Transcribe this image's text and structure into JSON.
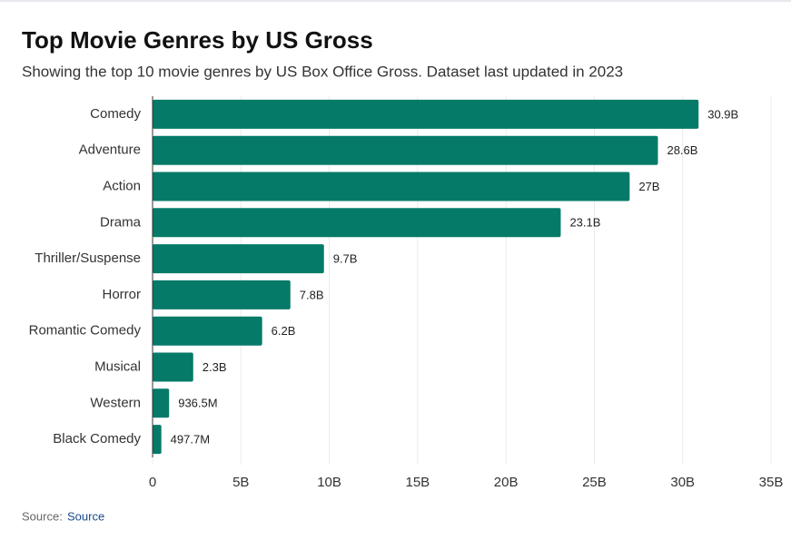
{
  "chart_data": {
    "type": "hbar",
    "title": "Top Movie Genres by US Gross",
    "subtitle": "Showing the top 10 movie genres by US Box Office Gross. Dataset last updated in 2023",
    "categories": [
      "Comedy",
      "Adventure",
      "Action",
      "Drama",
      "Thriller/Suspense",
      "Horror",
      "Romantic Comedy",
      "Musical",
      "Western",
      "Black Comedy"
    ],
    "values": [
      30900000000,
      28600000000,
      27000000000,
      23100000000,
      9700000000,
      7800000000,
      6200000000,
      2300000000,
      936500000,
      497700000
    ],
    "value_labels": [
      "30.9B",
      "28.6B",
      "27B",
      "23.1B",
      "9.7B",
      "7.8B",
      "6.2B",
      "2.3B",
      "936.5M",
      "497.7M"
    ],
    "color": "#057a68",
    "xlim": [
      0,
      35000000000
    ],
    "xticks": [
      0,
      {
        "value": 5000000000,
        "label": "5B"
      },
      {
        "value": 10000000000,
        "label": "10B"
      },
      {
        "value": 15000000000,
        "label": "15B"
      },
      {
        "value": 20000000000,
        "label": "20B"
      },
      {
        "value": 25000000000,
        "label": "25B"
      },
      {
        "value": 30000000000,
        "label": "30B"
      },
      {
        "value": 35000000000,
        "label": "35B"
      }
    ],
    "grid": true
  },
  "footer": {
    "label": "Source:",
    "link": "Source"
  }
}
